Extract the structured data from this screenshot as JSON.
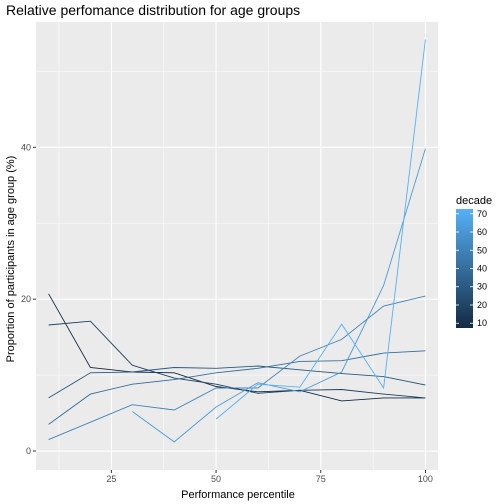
{
  "chart_data": {
    "type": "line",
    "title": "Relative perfomance distribution for age groups",
    "xlabel": "Performance percentile",
    "ylabel": "Proportion of participants in age group (%)",
    "xlim": [
      7,
      103
    ],
    "ylim": [
      -2.5,
      56.5
    ],
    "xticks": [
      25,
      50,
      75,
      100
    ],
    "yticks": [
      0,
      20,
      40
    ],
    "grid": true,
    "legend": {
      "title": "decade",
      "position": "right",
      "labels": [
        "70",
        "60",
        "50",
        "40",
        "30",
        "20",
        "10"
      ],
      "values": [
        70,
        60,
        50,
        40,
        30,
        20,
        10
      ],
      "color_low": "#132B43",
      "color_high": "#56B1F7"
    },
    "series": [
      {
        "decade": 10,
        "x": [
          10,
          20,
          30,
          40,
          50,
          60,
          70,
          80,
          90,
          100
        ],
        "y": [
          20.7,
          11.0,
          10.4,
          10.3,
          8.5,
          7.8,
          8.0,
          6.6,
          7.0,
          7.0
        ]
      },
      {
        "decade": 20,
        "x": [
          10,
          20,
          30,
          40,
          50,
          60,
          70,
          80,
          90,
          100
        ],
        "y": [
          16.6,
          17.1,
          11.3,
          9.6,
          8.8,
          7.6,
          8.0,
          8.1,
          7.5,
          7.0
        ]
      },
      {
        "decade": 30,
        "x": [
          10,
          20,
          30,
          40,
          50,
          60,
          70,
          80,
          90,
          100
        ],
        "y": [
          7.0,
          10.3,
          10.4,
          11.0,
          10.9,
          11.2,
          10.7,
          10.2,
          9.8,
          8.7
        ]
      },
      {
        "decade": 40,
        "x": [
          10,
          20,
          30,
          40,
          50,
          60,
          70,
          80,
          90,
          100
        ],
        "y": [
          3.5,
          7.5,
          8.8,
          9.4,
          10.3,
          10.9,
          11.8,
          11.9,
          12.9,
          13.2
        ]
      },
      {
        "decade": 50,
        "x": [
          10,
          20,
          30,
          40,
          50,
          60,
          70,
          80,
          90,
          100
        ],
        "y": [
          1.5,
          3.8,
          6.1,
          5.4,
          8.3,
          8.3,
          12.5,
          14.7,
          19.1,
          20.4
        ]
      },
      {
        "decade": 60,
        "x": [
          30,
          40,
          50,
          60,
          70,
          80,
          90,
          100
        ],
        "y": [
          5.2,
          1.2,
          5.8,
          9.0,
          7.8,
          10.4,
          21.8,
          39.8
        ]
      },
      {
        "decade": 70,
        "x": [
          50,
          60,
          70,
          80,
          90,
          100
        ],
        "y": [
          4.2,
          8.8,
          8.4,
          16.7,
          8.3,
          54.2
        ]
      }
    ]
  }
}
